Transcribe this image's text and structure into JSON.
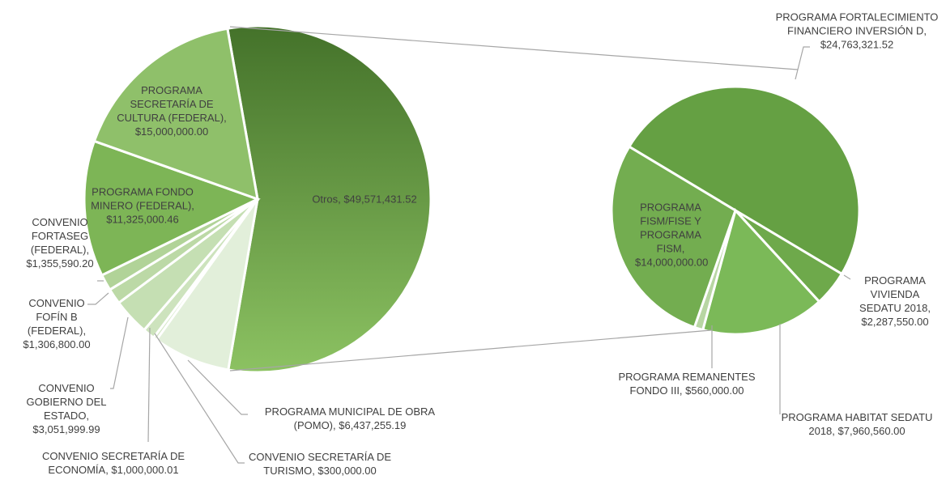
{
  "chart_data": [
    {
      "type": "pie",
      "values": [
        49571431.52,
        6437255.19,
        300000.0,
        1000000.01,
        3051999.99,
        1306800.0,
        1355590.2,
        11325000.46,
        15000000.0
      ],
      "value_labels": [
        "Otros, $49,571,431.52",
        "PROGRAMA MUNICIPAL DE OBRA (POMO), $6,437,255.19",
        "CONVENIO SECRETARÍA DE TURISMO, $300,000.00",
        "CONVENIO SECRETARÍA DE ECONOMÍA, $1,000,000.01",
        "CONVENIO GOBIERNO DEL ESTADO, $3,051,999.99",
        "CONVENIO FOFÍN B (FEDERAL), $1,306,800.00",
        "CONVENIO FORTASEG (FEDERAL), $1,355,590.20",
        "PROGRAMA FONDO MINERO (FEDERAL), $11,325,000.46",
        "PROGRAMA SECRETARÍA DE CULTURA (FEDERAL), $15,000,000.00"
      ],
      "colors": [
        "#5f9a3c",
        "#e2efda",
        "#d4e7c6",
        "#cde3bd",
        "#c5dfb3",
        "#bcd9a6",
        "#b1d398",
        "#7db556",
        "#8fc06a"
      ]
    },
    {
      "type": "pie",
      "values": [
        24763321.52,
        2287550.0,
        7960560.0,
        560000.0,
        14000000.0
      ],
      "value_labels": [
        "PROGRAMA FORTALECIMIENTO FINANCIERO INVERSIÓN D, $24,763,321.52",
        "PROGRAMA VIVIENDA SEDATU 2018, $2,287,550.00",
        "PROGRAMA HABITAT SEDATU 2018, $7,960,560.00",
        "PROGRAMA REMANENTES FONDO III, $560,000.00",
        "PROGRAMA FISM/FISE Y PROGRAMA FISM, $14,000,000.00"
      ],
      "colors": [
        "#65a043",
        "#6ea94b",
        "#7bb958",
        "#b8d6a3",
        "#73ad50"
      ]
    }
  ]
}
